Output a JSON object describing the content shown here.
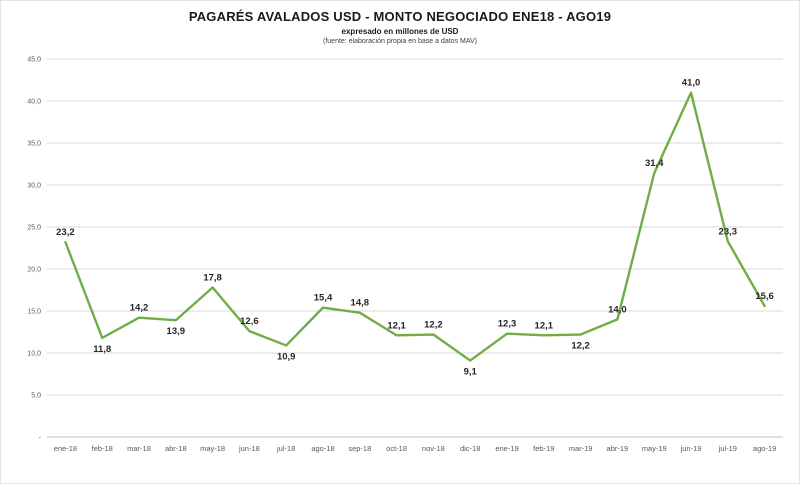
{
  "header": {
    "title": "PAGARÉS AVALADOS USD - MONTO NEGOCIADO ENE18 - AGO19",
    "subtitle": "expresado en millones de USD",
    "source": "(fuente: elaboración propia en base a datos MAV)"
  },
  "chart_data": {
    "type": "line",
    "title": "PAGARÉS AVALADOS USD - MONTO NEGOCIADO ENE18 - AGO19",
    "subtitle": "expresado en millones de USD",
    "source": "(fuente: elaboración propia en base a datos MAV)",
    "categories": [
      "ene-18",
      "feb-18",
      "mar-18",
      "abr-18",
      "may-18",
      "jun-18",
      "jul-18",
      "ago-18",
      "sep-18",
      "oct-18",
      "nov-18",
      "dic-18",
      "ene-19",
      "feb-19",
      "mar-19",
      "abr-19",
      "may-19",
      "jun-19",
      "jul-19",
      "ago-19"
    ],
    "values": [
      23.2,
      11.8,
      14.2,
      13.9,
      17.8,
      12.6,
      10.9,
      15.4,
      14.8,
      12.1,
      12.2,
      9.1,
      12.3,
      12.1,
      12.2,
      14.0,
      31.4,
      41.0,
      23.3,
      15.6
    ],
    "values_display": [
      "23,2",
      "11,8",
      "14,2",
      "13,9",
      "17,8",
      "12,6",
      "10,9",
      "15,4",
      "14,8",
      "12,1",
      "12,2",
      "9,1",
      "12,3",
      "12,1",
      "12,2",
      "14,0",
      "31,4",
      "41,0",
      "23,3",
      "15,6"
    ],
    "label_positions": [
      "above",
      "below",
      "above",
      "below",
      "above",
      "above",
      "below",
      "above",
      "above",
      "above",
      "above",
      "below",
      "above",
      "above",
      "below",
      "above",
      "above",
      "above",
      "above",
      "above"
    ],
    "xlabel": "",
    "ylabel": "",
    "ylim": [
      0,
      45
    ],
    "ytick_step": 5,
    "ytick_labels": [
      "-",
      "5,0",
      "10,0",
      "15,0",
      "20,0",
      "25,0",
      "30,0",
      "35,0",
      "40,0",
      "45,0"
    ],
    "grid": true,
    "legend_position": "none",
    "line_color": "#70ad47",
    "grid_color": "#d9d9d9",
    "axis_color": "#bfbfbf",
    "tick_label_color": "#595959",
    "data_label_color": "#262626"
  }
}
